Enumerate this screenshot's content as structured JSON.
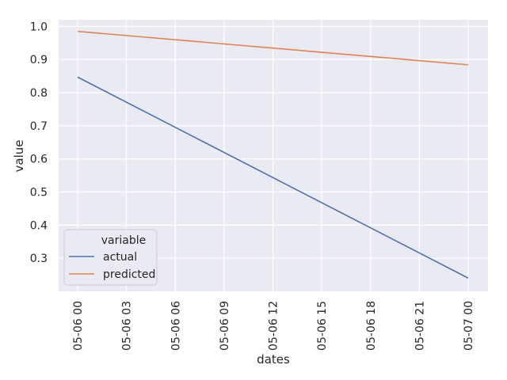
{
  "chart_data": {
    "type": "line",
    "xlabel": "dates",
    "ylabel": "value",
    "x_ticks": [
      "05-06 00",
      "05-06 03",
      "05-06 06",
      "05-06 09",
      "05-06 12",
      "05-06 15",
      "05-06 18",
      "05-06 21",
      "05-07 00"
    ],
    "y_ticks": [
      "0.3",
      "0.4",
      "0.5",
      "0.6",
      "0.7",
      "0.8",
      "0.9",
      "1.0"
    ],
    "x": [
      "05-06 00",
      "05-07 00"
    ],
    "ylim": [
      0.2,
      1.02
    ],
    "grid": true,
    "legend": {
      "title": "variable",
      "placement": "lower-left"
    },
    "series": [
      {
        "name": "actual",
        "color": "#4c72b0",
        "values": [
          0.847,
          0.24
        ]
      },
      {
        "name": "predicted",
        "color": "#dd8452",
        "values": [
          0.985,
          0.884
        ]
      }
    ]
  }
}
